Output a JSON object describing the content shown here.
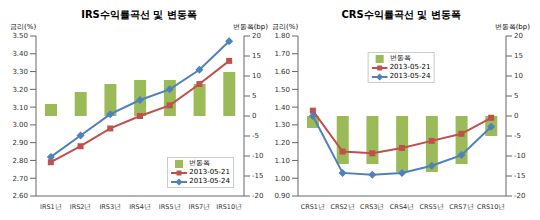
{
  "chart_data": [
    {
      "type": "combo",
      "title": "IRS수익률곡선 및 변동폭",
      "y_label": "금리(%)",
      "y2_label": "변동폭(bp)",
      "categories": [
        "IRS1년",
        "IRS2년",
        "IRS3년",
        "IRS4년",
        "IRS5년",
        "IRS7년",
        "IRS10년"
      ],
      "series": [
        {
          "name": "변동폭",
          "type": "bar",
          "axis": "y2",
          "color": "#9bbb59",
          "values": [
            3,
            6,
            8,
            9,
            9,
            8,
            11
          ]
        },
        {
          "name": "2013-05-21",
          "type": "line",
          "color": "#c0504d",
          "marker": "square",
          "values": [
            2.79,
            2.88,
            2.98,
            3.05,
            3.11,
            3.23,
            3.36
          ]
        },
        {
          "name": "2013-05-24",
          "type": "line",
          "color": "#4f81bd",
          "marker": "diamond",
          "values": [
            2.82,
            2.94,
            3.06,
            3.14,
            3.2,
            3.31,
            3.47
          ]
        }
      ],
      "ylim": [
        2.6,
        3.5
      ],
      "yticks": [
        {
          "value": 2.6,
          "label": "2.60"
        },
        {
          "value": 2.7,
          "label": "2.70"
        },
        {
          "value": 2.8,
          "label": "2.80"
        },
        {
          "value": 2.9,
          "label": "2.90"
        },
        {
          "value": 3.0,
          "label": "3.00"
        },
        {
          "value": 3.1,
          "label": "3.10"
        },
        {
          "value": 3.2,
          "label": "3.20"
        },
        {
          "value": 3.3,
          "label": "3.30"
        },
        {
          "value": 3.4,
          "label": "3.40"
        },
        {
          "value": 3.5,
          "label": "3.50"
        }
      ],
      "y2lim": [
        -20,
        20
      ],
      "y2ticks": [
        -20,
        -15,
        -10,
        -5,
        0,
        5,
        10,
        15,
        20
      ],
      "grid": false,
      "legend": "lower right"
    },
    {
      "type": "combo",
      "title": "CRS수익률곡선 및 변동폭",
      "y_label": "금리(%)",
      "y2_label": "변동폭(bp)",
      "categories": [
        "CRS1년",
        "CRS2년",
        "CRS3년",
        "CRS4년",
        "CRS5년",
        "CRS7년",
        "CRS10년"
      ],
      "series": [
        {
          "name": "변동폭",
          "type": "bar",
          "axis": "y2",
          "color": "#9bbb59",
          "values": [
            -3,
            -12,
            -12,
            -14,
            -14,
            -12,
            -5
          ]
        },
        {
          "name": "2013-05-21",
          "type": "line",
          "color": "#c0504d",
          "marker": "square",
          "values": [
            1.38,
            1.15,
            1.14,
            1.17,
            1.21,
            1.25,
            1.34
          ]
        },
        {
          "name": "2013-05-24",
          "type": "line",
          "color": "#4f81bd",
          "marker": "diamond",
          "values": [
            1.35,
            1.03,
            1.02,
            1.03,
            1.07,
            1.13,
            1.29
          ]
        }
      ],
      "ylim": [
        0.9,
        1.8
      ],
      "yticks": [
        {
          "value": 0.9,
          "label": "0.90"
        },
        {
          "value": 1.0,
          "label": "1.00"
        },
        {
          "value": 1.1,
          "label": "1.10"
        },
        {
          "value": 1.2,
          "label": "1.20"
        },
        {
          "value": 1.3,
          "label": "1.30"
        },
        {
          "value": 1.4,
          "label": "1.40"
        },
        {
          "value": 1.5,
          "label": "1.50"
        },
        {
          "value": 1.6,
          "label": "1.60"
        },
        {
          "value": 1.7,
          "label": "1.70"
        },
        {
          "value": 1.8,
          "label": "1.80"
        }
      ],
      "y2lim": [
        -20,
        20
      ],
      "y2ticks": [
        -20,
        -15,
        -10,
        -5,
        0,
        5,
        10,
        15,
        20
      ],
      "grid": false,
      "legend": "upper center"
    }
  ]
}
